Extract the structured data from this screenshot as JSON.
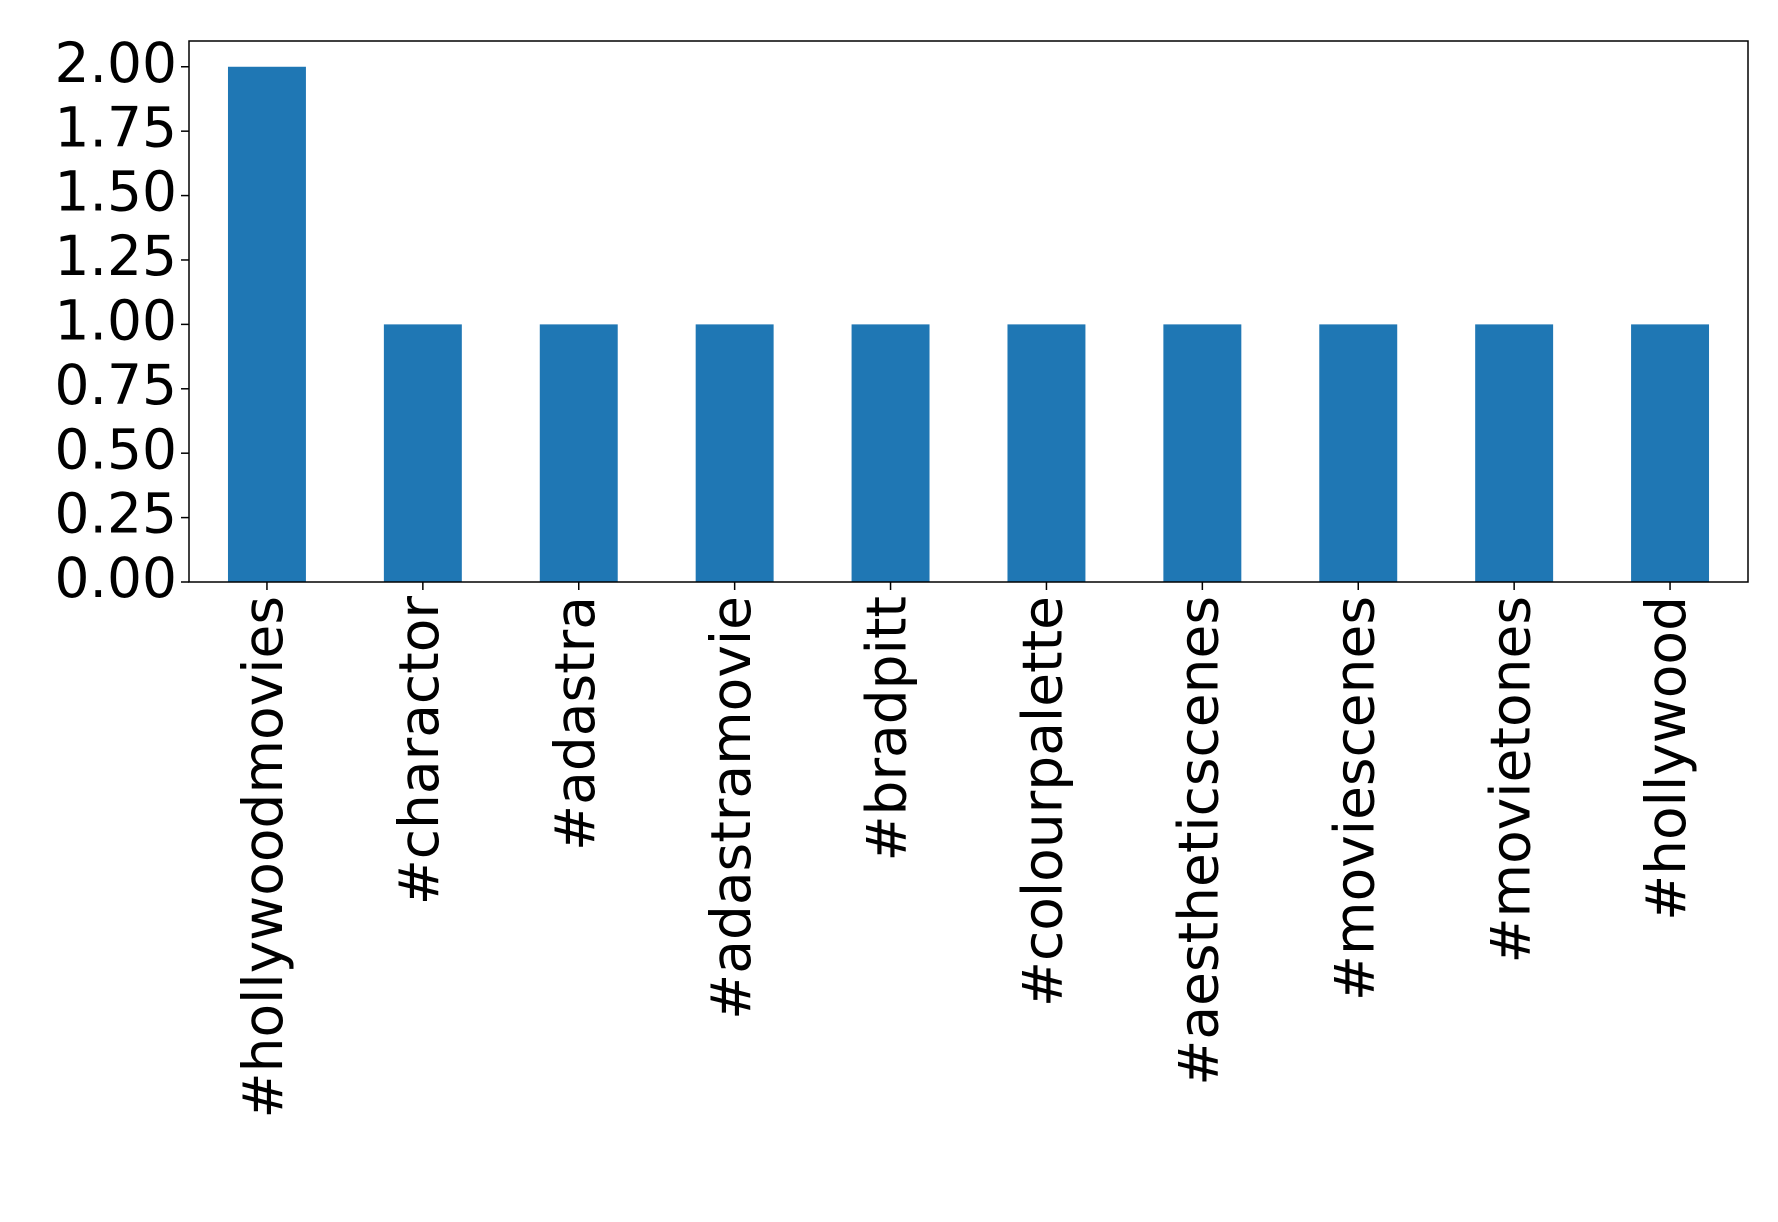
{
  "chart_data": {
    "type": "bar",
    "categories": [
      "#hollywoodmovies",
      "#charactor",
      "#adastra",
      "#adastramovie",
      "#bradpitt",
      "#colourpalette",
      "#aestheticscenes",
      "#moviescenes",
      "#movietones",
      "#hollywood"
    ],
    "values": [
      2,
      1,
      1,
      1,
      1,
      1,
      1,
      1,
      1,
      1
    ],
    "color": "#1f77b4",
    "ylim": [
      0,
      2.1
    ],
    "yticks": [
      {
        "value": 0,
        "label": "0.00"
      },
      {
        "value": 0.25,
        "label": "0.25"
      },
      {
        "value": 0.5,
        "label": "0.50"
      },
      {
        "value": 0.75,
        "label": "0.75"
      },
      {
        "value": 1,
        "label": "1.00"
      },
      {
        "value": 1.25,
        "label": "1.25"
      },
      {
        "value": 1.5,
        "label": "1.50"
      },
      {
        "value": 1.75,
        "label": "1.75"
      },
      {
        "value": 2,
        "label": "2.00"
      }
    ],
    "grid": false
  }
}
